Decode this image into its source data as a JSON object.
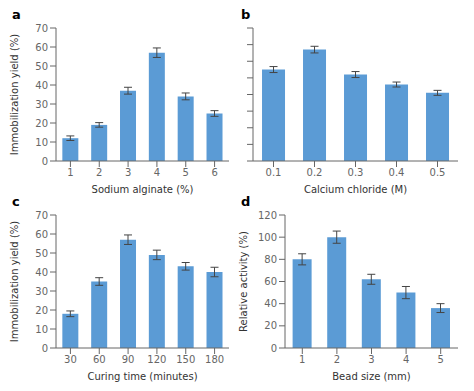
{
  "chart_data": [
    {
      "type": "bar",
      "title": "a",
      "categories": [
        "1",
        "2",
        "3",
        "4",
        "5",
        "6"
      ],
      "values": [
        12,
        19,
        37,
        57,
        34,
        25
      ],
      "errors": [
        1.2,
        1.2,
        1.8,
        2.5,
        1.8,
        1.5
      ],
      "xlabel": "Sodium alginate (%)",
      "ylabel": "Immobilization yield (%)",
      "ylim": [
        0,
        70
      ],
      "yticks": [
        0,
        10,
        20,
        30,
        40,
        50,
        60,
        70
      ],
      "color": "#5b9bd5",
      "grid": false
    },
    {
      "type": "bar",
      "title": "b",
      "categories": [
        "0.1",
        "0.2",
        "0.3",
        "0.4",
        "0.5"
      ],
      "values": [
        55,
        67,
        52,
        46,
        41
      ],
      "errors": [
        1.8,
        2.0,
        1.8,
        1.5,
        1.5
      ],
      "xlabel": "Calcium chloride (M)",
      "ylim": [
        0,
        80
      ],
      "yticks": [
        0,
        10,
        20,
        30,
        40,
        50,
        60,
        70,
        80
      ],
      "tick_labels": "x",
      "color": "#5b9bd5",
      "grid": false
    },
    {
      "type": "bar",
      "title": "c",
      "categories": [
        "30",
        "60",
        "90",
        "120",
        "150",
        "180"
      ],
      "values": [
        18,
        35,
        57,
        49,
        43,
        40
      ],
      "errors": [
        1.5,
        2.0,
        2.5,
        2.5,
        2.0,
        2.5
      ],
      "xlabel": "Curing time (minutes)",
      "ylabel": "Immobilization yield (%)",
      "ylim": [
        0,
        70
      ],
      "yticks": [
        0,
        10,
        20,
        30,
        40,
        50,
        60,
        70
      ],
      "color": "#5b9bd5",
      "grid": false
    },
    {
      "type": "bar",
      "title": "d",
      "categories": [
        "1",
        "2",
        "3",
        "4",
        "5"
      ],
      "values": [
        80,
        100,
        62,
        50,
        36
      ],
      "errors": [
        5.0,
        5.5,
        4.5,
        5.5,
        4.0
      ],
      "xlabel": "Bead size (mm)",
      "ylabel": "Relative activity (%)",
      "ylim": [
        0,
        120
      ],
      "yticks": [
        0,
        20,
        40,
        60,
        80,
        100,
        120
      ],
      "color": "#5b9bd5",
      "grid": false
    }
  ]
}
